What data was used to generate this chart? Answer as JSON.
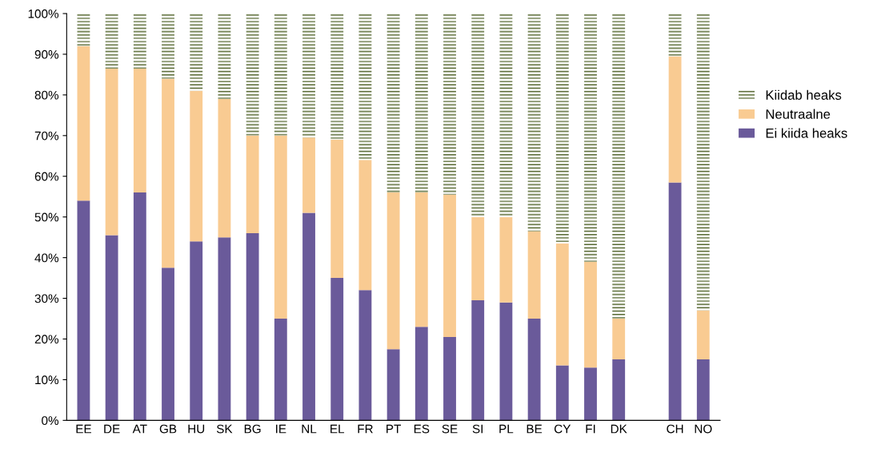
{
  "chart_data": {
    "type": "bar",
    "stacked": true,
    "categories": [
      "EE",
      "DE",
      "AT",
      "GB",
      "HU",
      "SK",
      "BG",
      "IE",
      "NL",
      "EL",
      "FR",
      "PT",
      "ES",
      "SE",
      "SI",
      "PL",
      "BE",
      "CY",
      "FI",
      "DK",
      null,
      "CH",
      "NO"
    ],
    "series": [
      {
        "name": "Ei kiida heaks",
        "color": "#6a5a9a",
        "values": [
          54,
          45.5,
          56,
          37.5,
          44,
          45,
          46,
          25,
          51,
          35,
          32,
          17.5,
          23,
          20.5,
          29.5,
          29,
          25,
          13.5,
          13,
          15,
          null,
          58.5,
          15
        ]
      },
      {
        "name": "Neutraalne",
        "color": "#f9cb92",
        "values": [
          38,
          41,
          30.5,
          46.5,
          37,
          34,
          24,
          45,
          18.5,
          34,
          32,
          38.5,
          33,
          35,
          20.5,
          21,
          21.5,
          30,
          26,
          10,
          null,
          31,
          12
        ]
      },
      {
        "name": "Kiidab heaks",
        "color": "#4f6228",
        "values": [
          8,
          13.5,
          13.5,
          16,
          19,
          21,
          30,
          30,
          30.5,
          31,
          36,
          44,
          44,
          44.5,
          50,
          50,
          53.5,
          56.5,
          61,
          75,
          null,
          10.5,
          73
        ]
      }
    ],
    "ylim": [
      0,
      100
    ],
    "yticks": [
      {
        "value": 0,
        "label": "0%"
      },
      {
        "value": 10,
        "label": "10%"
      },
      {
        "value": 20,
        "label": "20%"
      },
      {
        "value": 30,
        "label": "30%"
      },
      {
        "value": 40,
        "label": "40%"
      },
      {
        "value": 50,
        "label": "50%"
      },
      {
        "value": 60,
        "label": "60%"
      },
      {
        "value": 70,
        "label": "70%"
      },
      {
        "value": 80,
        "label": "80%"
      },
      {
        "value": 90,
        "label": "90%"
      },
      {
        "value": 100,
        "label": "100%"
      }
    ],
    "legend": "right"
  }
}
